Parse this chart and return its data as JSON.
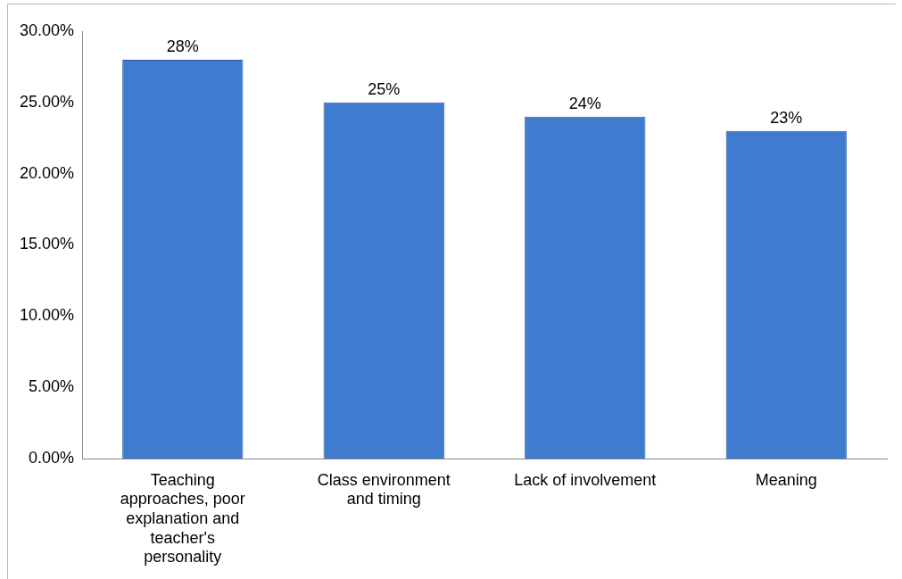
{
  "chart_data": {
    "type": "bar",
    "categories": [
      "Teaching approaches, poor explanation and teacher's personality",
      "Class environment and timing",
      "Lack of involvement",
      "Meaning"
    ],
    "values": [
      28,
      25,
      24,
      23
    ],
    "value_labels": [
      "28%",
      "25%",
      "24%",
      "23%"
    ],
    "color": "#3f7ccf",
    "ylim": [
      0,
      30
    ],
    "yticks": [
      {
        "value": 0,
        "label": "0.00%"
      },
      {
        "value": 5,
        "label": "5.00%"
      },
      {
        "value": 10,
        "label": "10.00%"
      },
      {
        "value": 15,
        "label": "15.00%"
      },
      {
        "value": 20,
        "label": "20.00%"
      },
      {
        "value": 25,
        "label": "25.00%"
      },
      {
        "value": 30,
        "label": "30.00%"
      }
    ],
    "grid": false,
    "legend": false
  }
}
